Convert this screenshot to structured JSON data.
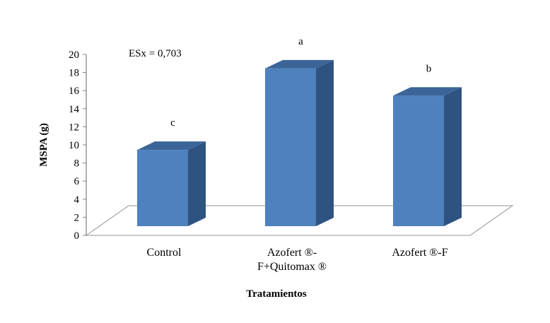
{
  "chart_data": {
    "type": "bar",
    "style": "3d-column",
    "categories": [
      "Control",
      "Azofert ®-F+Quitomax ®",
      "Azofert ®-F"
    ],
    "category_lines": [
      [
        "Control"
      ],
      [
        "Azofert ®-",
        "F+Quitomax ®"
      ],
      [
        "Azofert ®-F"
      ]
    ],
    "values": [
      9.6,
      18.6,
      15.6
    ],
    "significance_letters": [
      "c",
      "a",
      "b"
    ],
    "annotation": "ESx  = 0,703",
    "xlabel": "Tratamientos",
    "ylabel": "MSPA (g)",
    "ylim": [
      0,
      20
    ],
    "yticks": [
      "0",
      "2",
      "4",
      "6",
      "8",
      "10",
      "12",
      "14",
      "16",
      "18",
      "20"
    ],
    "grid": false,
    "legend": "none",
    "colors": {
      "bar_front": "#4F81BD",
      "bar_side": "#2F5380",
      "bar_top": "#3B6598",
      "floor_stroke": "#A6A6A6"
    }
  }
}
